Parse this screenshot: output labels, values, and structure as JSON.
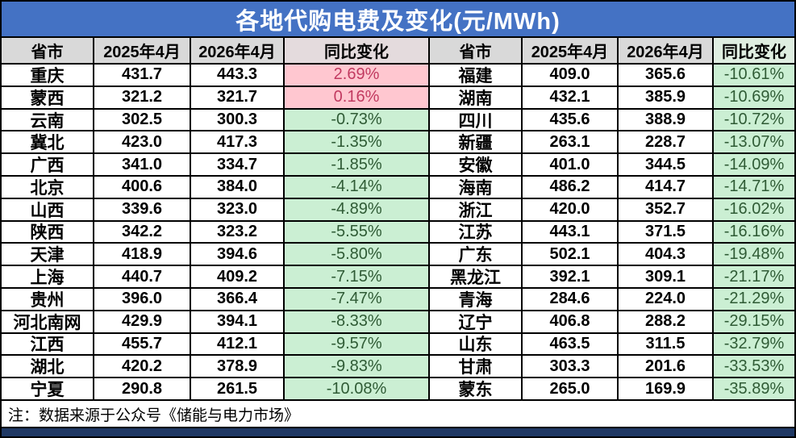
{
  "title": "各地代购电费及变化(元/MWh)",
  "note": "注：数据来源于公众号《储能与电力市场》",
  "colors": {
    "title_bg": "#4472C4",
    "title_text": "#FFFFFF",
    "header_bg": "#D9D9D9",
    "header_change_left_bg": "#E4DBDD",
    "header_change_right_bg": "#DFEEE1",
    "up_bg": "#FFC7D0",
    "up_text": "#C13A60",
    "down_bg": "#CBEFD3",
    "down_text": "#2F5B35",
    "border": "#000000",
    "bottom_bar_bg": "#1F3864"
  },
  "chart_data": {
    "type": "table",
    "title": "各地代购电费及变化(元/MWh)",
    "columns": [
      "省市",
      "2025年4月",
      "2026年4月",
      "同比变化"
    ],
    "layout": "two side-by-side 4-column tables; rows 0-14 left, 15-29 right",
    "rows": [
      [
        "重庆",
        "431.7",
        "443.3",
        "2.69%"
      ],
      [
        "蒙西",
        "321.2",
        "321.7",
        "0.16%"
      ],
      [
        "云南",
        "302.5",
        "300.3",
        "-0.73%"
      ],
      [
        "冀北",
        "423.0",
        "417.3",
        "-1.35%"
      ],
      [
        "广西",
        "341.0",
        "334.7",
        "-1.85%"
      ],
      [
        "北京",
        "400.6",
        "384.0",
        "-4.14%"
      ],
      [
        "山西",
        "339.6",
        "323.0",
        "-4.89%"
      ],
      [
        "陕西",
        "342.2",
        "323.2",
        "-5.55%"
      ],
      [
        "天津",
        "418.9",
        "394.6",
        "-5.80%"
      ],
      [
        "上海",
        "440.7",
        "409.2",
        "-7.15%"
      ],
      [
        "贵州",
        "396.0",
        "366.4",
        "-7.47%"
      ],
      [
        "河北南网",
        "429.9",
        "394.1",
        "-8.33%"
      ],
      [
        "江西",
        "455.7",
        "412.1",
        "-9.57%"
      ],
      [
        "湖北",
        "420.2",
        "378.9",
        "-9.83%"
      ],
      [
        "宁夏",
        "290.8",
        "261.5",
        "-10.08%"
      ],
      [
        "福建",
        "409.0",
        "365.6",
        "-10.61%"
      ],
      [
        "湖南",
        "432.1",
        "385.9",
        "-10.69%"
      ],
      [
        "四川",
        "435.6",
        "388.9",
        "-10.72%"
      ],
      [
        "新疆",
        "263.1",
        "228.7",
        "-13.07%"
      ],
      [
        "安徽",
        "401.0",
        "344.5",
        "-14.09%"
      ],
      [
        "海南",
        "486.2",
        "414.7",
        "-14.71%"
      ],
      [
        "浙江",
        "420.0",
        "352.7",
        "-16.02%"
      ],
      [
        "江苏",
        "443.1",
        "371.5",
        "-16.16%"
      ],
      [
        "广东",
        "502.1",
        "404.3",
        "-19.48%"
      ],
      [
        "黑龙江",
        "392.1",
        "309.1",
        "-21.17%"
      ],
      [
        "青海",
        "284.6",
        "224.0",
        "-21.29%"
      ],
      [
        "辽宁",
        "406.8",
        "288.2",
        "-29.15%"
      ],
      [
        "山东",
        "463.5",
        "311.5",
        "-32.79%"
      ],
      [
        "甘肃",
        "303.3",
        "201.6",
        "-33.53%"
      ],
      [
        "蒙东",
        "265.0",
        "169.9",
        "-35.89%"
      ]
    ]
  }
}
